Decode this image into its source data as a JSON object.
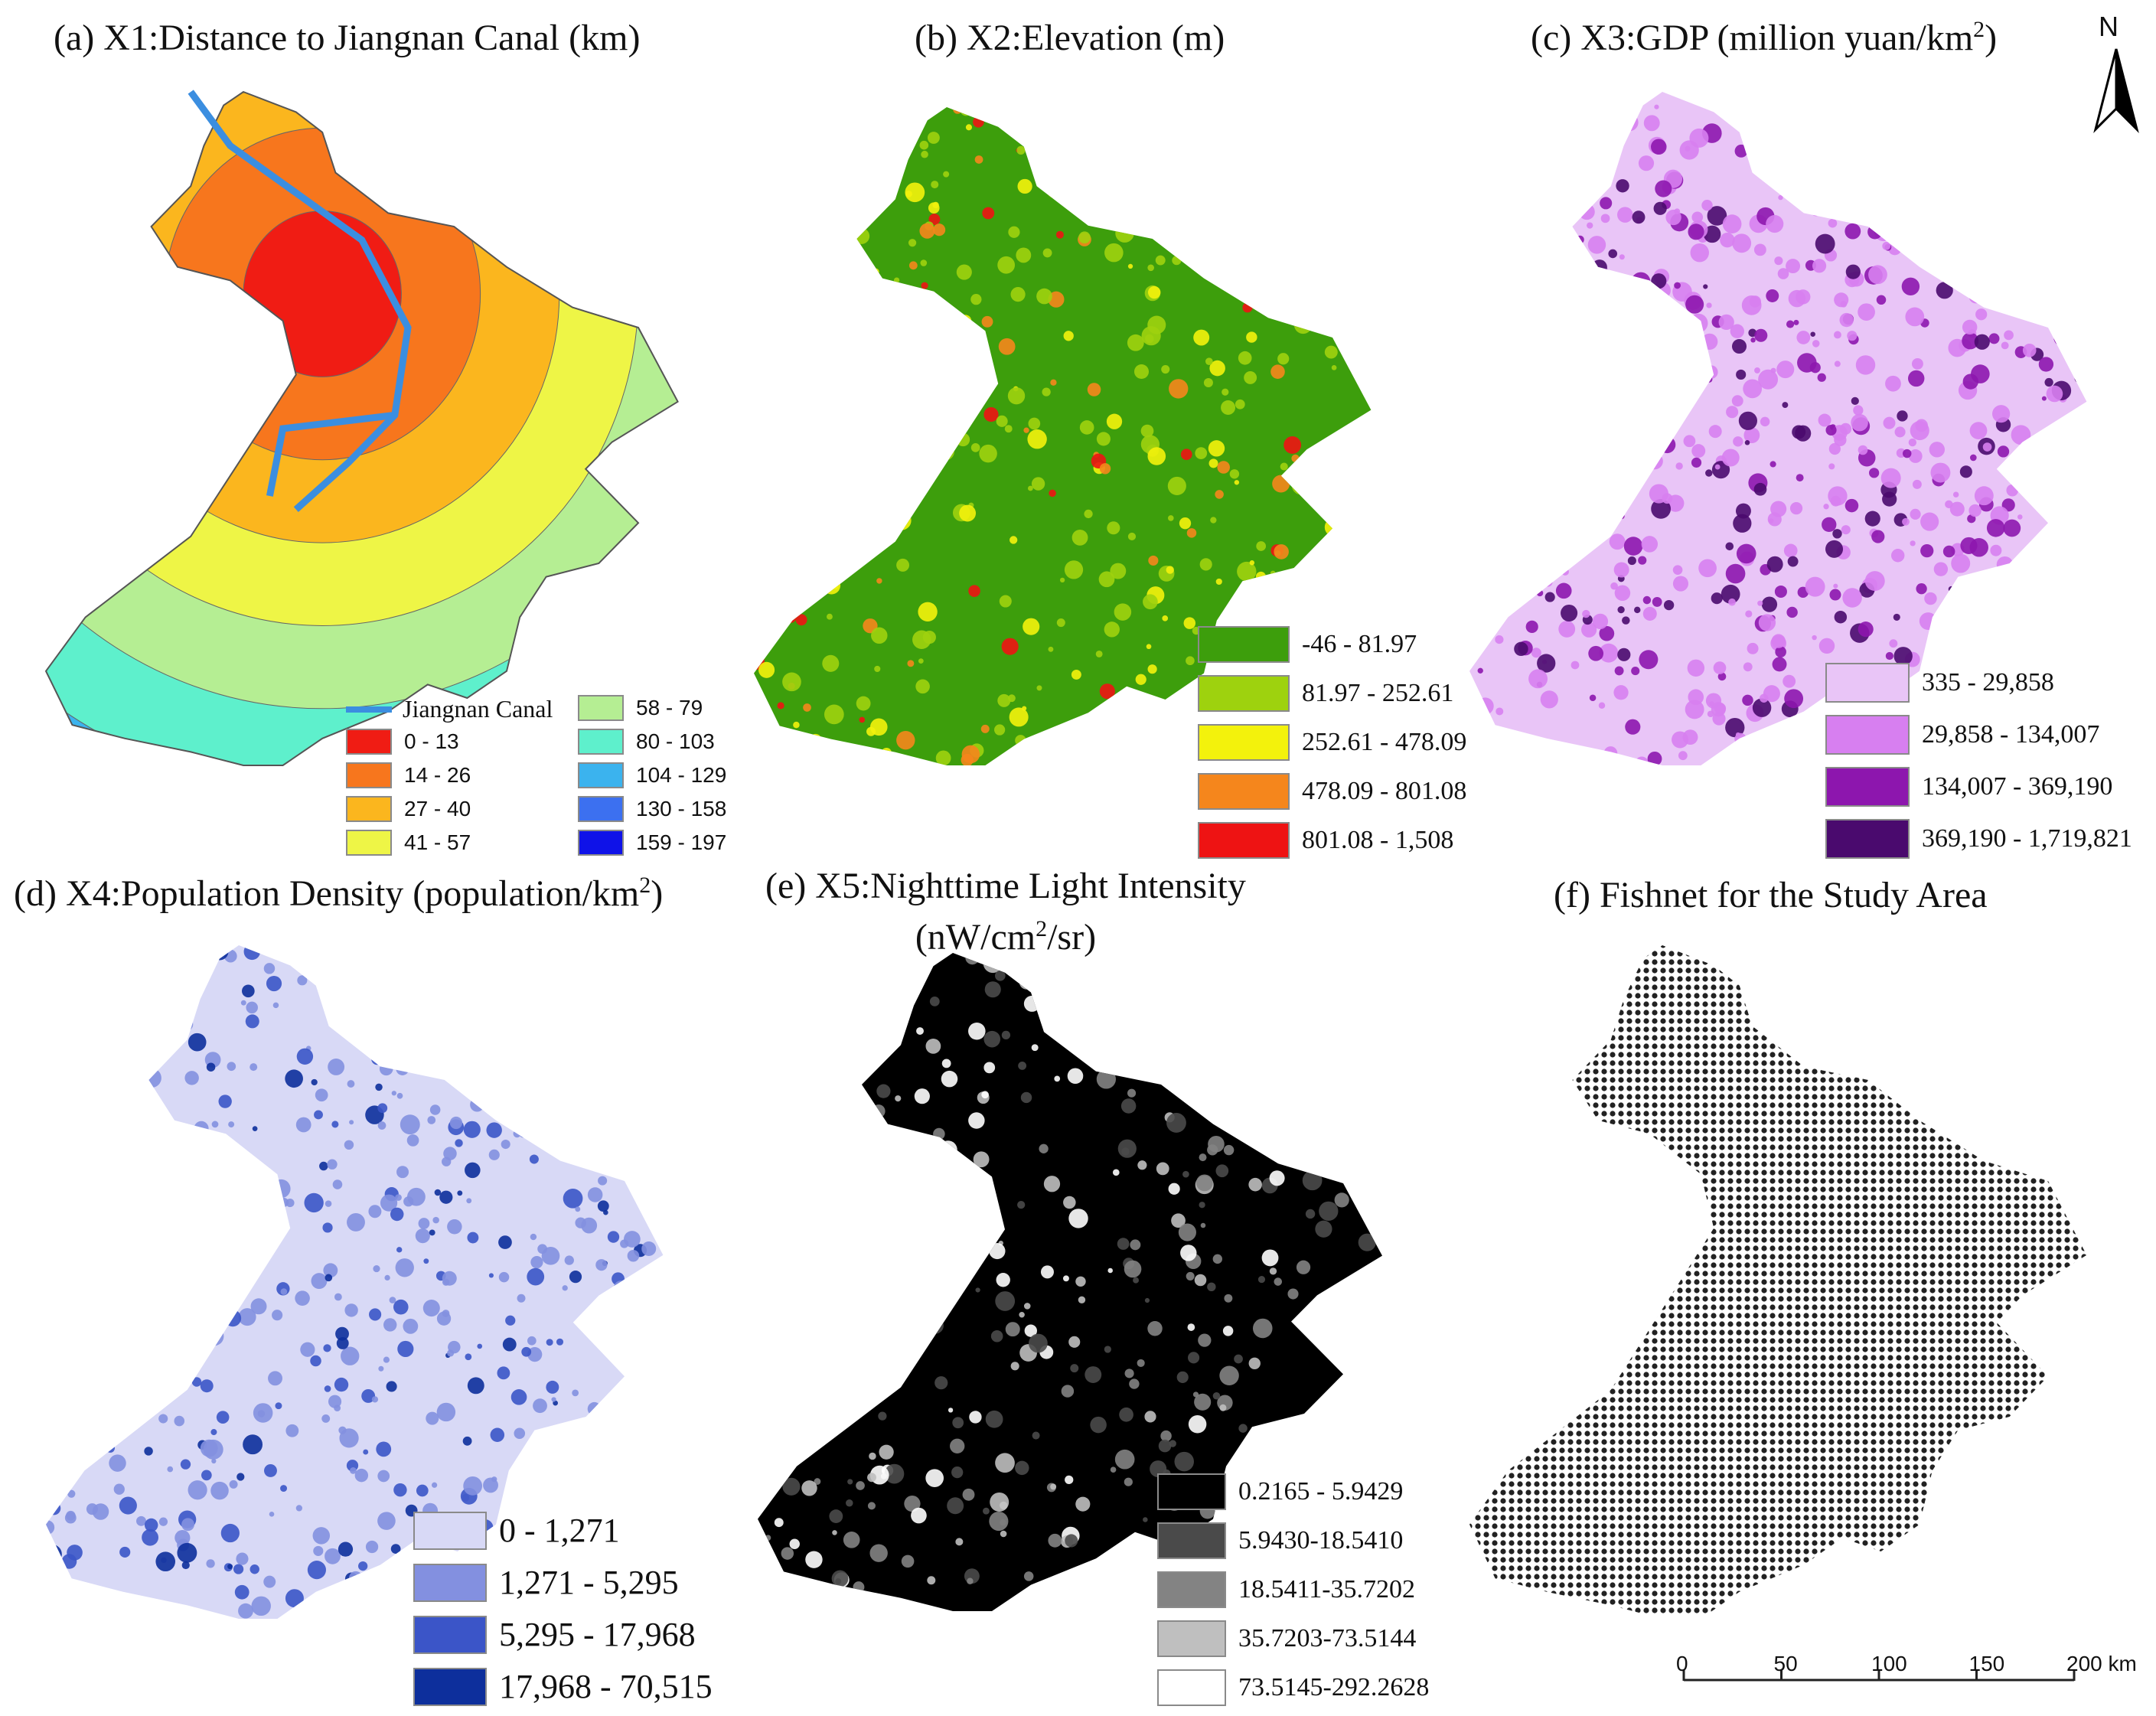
{
  "panels": {
    "a": {
      "title": "(a) X1:Distance to Jiangnan Canal (km)",
      "canal_label": "Jiangnan Canal",
      "legend": [
        {
          "label": "0 - 13",
          "color": "#f01c14"
        },
        {
          "label": "14 - 26",
          "color": "#f7761d"
        },
        {
          "label": "27 - 40",
          "color": "#fbb61e"
        },
        {
          "label": "41 - 57",
          "color": "#eef546"
        },
        {
          "label": "58 - 79",
          "color": "#b5ee93"
        },
        {
          "label": "80 - 103",
          "color": "#5ef0cc"
        },
        {
          "label": "104 - 129",
          "color": "#3bb3ee"
        },
        {
          "label": "130 - 158",
          "color": "#3c70f0"
        },
        {
          "label": "159 - 197",
          "color": "#0f12e8"
        }
      ],
      "canal_color": "#3b8ee0"
    },
    "b": {
      "title": "(b) X2:Elevation (m)",
      "legend": [
        {
          "label": "-46 - 81.97",
          "color": "#3d9e0c"
        },
        {
          "label": "81.97 - 252.61",
          "color": "#9ed20e"
        },
        {
          "label": "252.61 - 478.09",
          "color": "#f3f20c"
        },
        {
          "label": "478.09 - 801.08",
          "color": "#f5861c"
        },
        {
          "label": "801.08 - 1,508",
          "color": "#ee1313"
        }
      ]
    },
    "c": {
      "title_main": "(c) X3:GDP  (million yuan/km",
      "title_sup": "2",
      "title_end": ")",
      "legend": [
        {
          "label": "335 - 29,858",
          "color": "#e9c5f7"
        },
        {
          "label": "29,858 - 134,007",
          "color": "#d77ff0"
        },
        {
          "label": "134,007 - 369,190",
          "color": "#8d16ae"
        },
        {
          "label": "369,190 - 1,719,821",
          "color": "#4a0a6e"
        }
      ]
    },
    "d": {
      "title_main": "(d) X4:Population Density  (population/km",
      "title_sup": "2",
      "title_end": ")",
      "legend": [
        {
          "label": "0 - 1,271",
          "color": "#d8d9f6"
        },
        {
          "label": "1,271 - 5,295",
          "color": "#8390e0"
        },
        {
          "label": "5,295 - 17,968",
          "color": "#3b55c8"
        },
        {
          "label": "17,968 - 70,515",
          "color": "#0d2f9c"
        }
      ]
    },
    "e": {
      "title_line1": "(e) X5:Nighttime Light Intensity",
      "title_line2_main": "(nW/cm",
      "title_line2_sup": "2",
      "title_line2_end": "/sr)",
      "legend": [
        {
          "label": "0.2165 - 5.9429",
          "color": "#000000"
        },
        {
          "label": "5.9430-18.5410",
          "color": "#4a4a4a"
        },
        {
          "label": "18.5411-35.7202",
          "color": "#838383"
        },
        {
          "label": "35.7203-73.5144",
          "color": "#bfbfbf"
        },
        {
          "label": "73.5145-292.2628",
          "color": "#ffffff"
        }
      ]
    },
    "f": {
      "title": "(f) Fishnet for the Study Area",
      "scale_ticks": [
        "0",
        "50",
        "100",
        "150",
        "200 km"
      ]
    }
  },
  "north_arrow": "N"
}
